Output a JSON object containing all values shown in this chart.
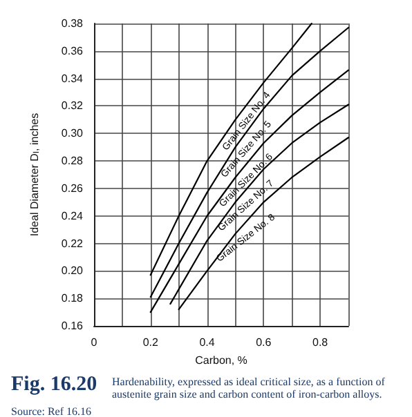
{
  "chart_data": {
    "type": "line",
    "title": "Fig. 16.20",
    "subtitle": "Hardenability, expressed as ideal critical size, as a function of austenite grain size and carbon content of iron-carbon alloys.",
    "xlabel": "Carbon, %",
    "ylabel": "Ideal Diameter D$_{I}$, inches",
    "annotations": [
      "Source: Ref 16.16"
    ],
    "xlim": [
      0,
      0.9
    ],
    "xticks": [
      0,
      {
        "value": 0.1,
        "label": null
      },
      0.2,
      {
        "value": 0.3,
        "label": null
      },
      0.4,
      {
        "value": 0.5,
        "label": null
      },
      0.6,
      {
        "value": 0.7,
        "label": null
      },
      0.8,
      {
        "value": 0.9,
        "label": null
      }
    ],
    "ylim": [
      0.16,
      0.38
    ],
    "yticks": [
      0.16,
      0.18,
      {
        "value": 0.2,
        "label": "0.20"
      },
      0.22,
      0.24,
      0.26,
      0.28,
      {
        "value": 0.3,
        "label": "0.30"
      },
      0.32,
      0.34,
      0.36,
      0.38
    ],
    "grid": true,
    "legend": false,
    "marker": "none",
    "line_style": "solid",
    "series": [
      {
        "name": "Grain Size No. 4",
        "color": "#000000",
        "x": [
          0.2,
          0.3,
          0.4,
          0.5,
          0.6,
          0.7,
          0.77
        ],
        "values": [
          0.197,
          0.24,
          0.28,
          0.31,
          0.337,
          0.362,
          0.38
        ]
      },
      {
        "name": "Grain Size No. 5",
        "color": "#000000",
        "x": [
          0.2,
          0.3,
          0.4,
          0.5,
          0.6,
          0.7,
          0.8,
          0.9
        ],
        "values": [
          0.181,
          0.22,
          0.257,
          0.29,
          0.318,
          0.342,
          0.36,
          0.377
        ]
      },
      {
        "name": "Grain Size No. 6",
        "color": "#000000",
        "x": [
          0.2,
          0.3,
          0.4,
          0.5,
          0.6,
          0.7,
          0.8,
          0.9
        ],
        "values": [
          0.17,
          0.205,
          0.24,
          0.268,
          0.293,
          0.313,
          0.33,
          0.346
        ]
      },
      {
        "name": "Grain Size No. 7",
        "color": "#000000",
        "x": [
          0.27,
          0.4,
          0.5,
          0.6,
          0.7,
          0.8,
          0.9
        ],
        "values": [
          0.176,
          0.222,
          0.25,
          0.274,
          0.293,
          0.308,
          0.321
        ]
      },
      {
        "name": "Grain Size No. 8",
        "color": "#000000",
        "x": [
          0.3,
          0.4,
          0.5,
          0.6,
          0.7,
          0.8,
          0.9
        ],
        "values": [
          0.172,
          0.2,
          0.227,
          0.25,
          0.268,
          0.283,
          0.297
        ]
      }
    ]
  }
}
